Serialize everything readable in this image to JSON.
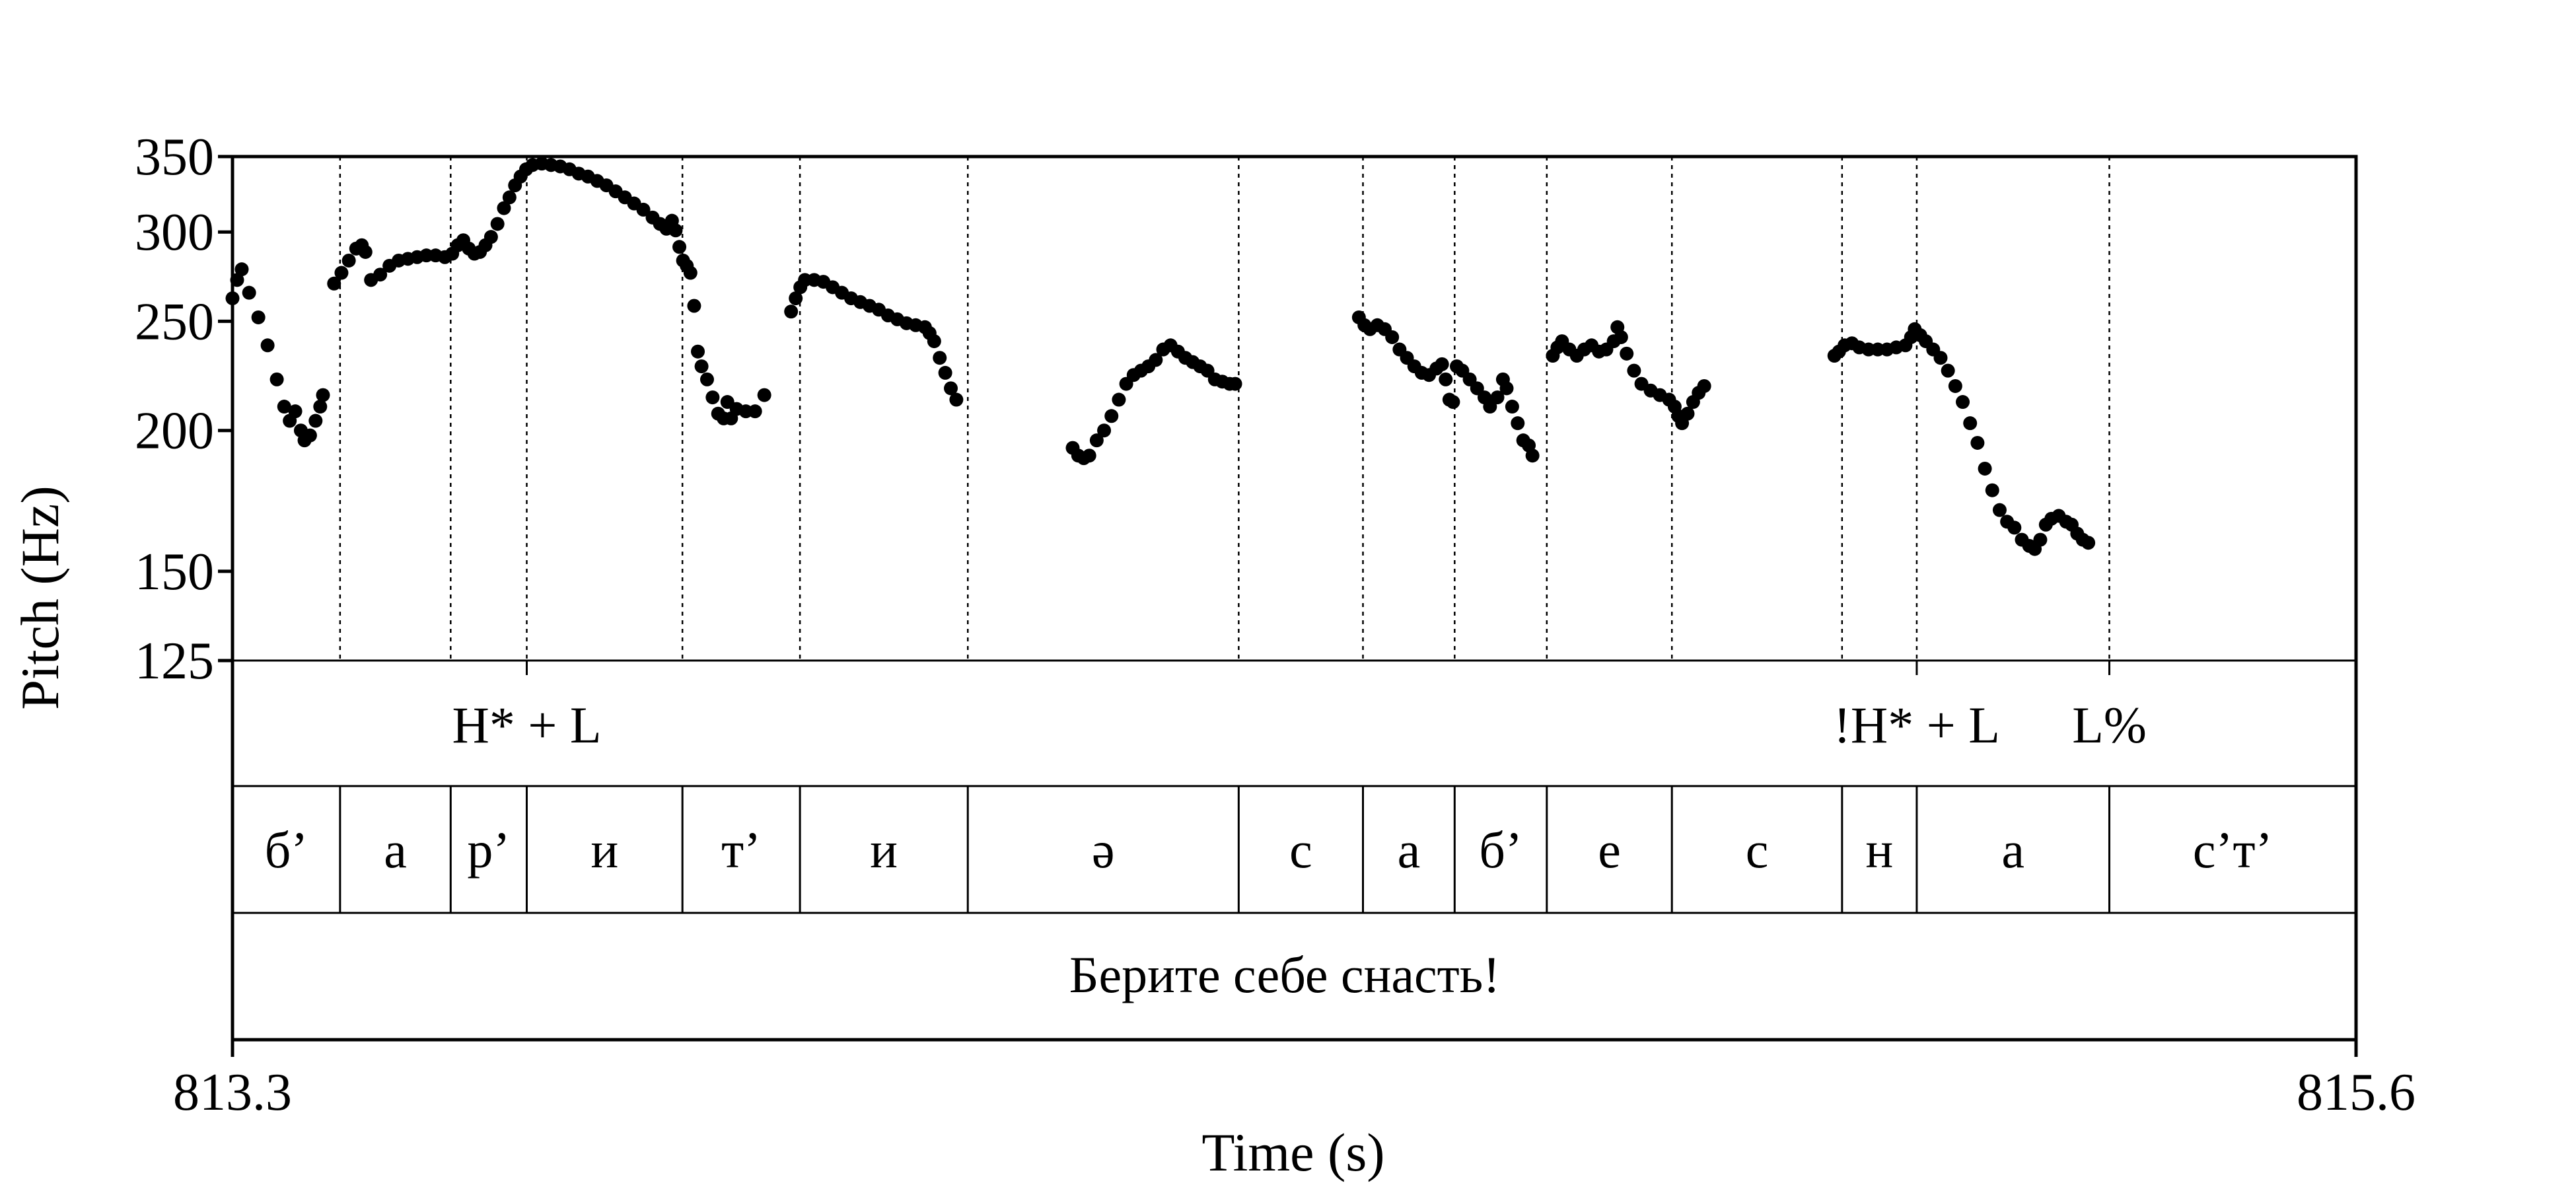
{
  "chart_data": {
    "type": "scatter",
    "xlabel": "Time (s)",
    "ylabel": "Pitch (Hz)",
    "xlim": [
      813.3,
      815.6
    ],
    "ylim": [
      125,
      350
    ],
    "x_tick_labels": [
      "813.3",
      "815.6"
    ],
    "y_ticks": [
      125,
      150,
      200,
      250,
      300,
      350
    ],
    "y_tick_labels": [
      "125",
      "150",
      "200",
      "250",
      "300",
      "350"
    ],
    "y_scale": "log",
    "boundaries": [
      813.4165,
      813.5363,
      813.6187,
      813.7873,
      813.9146,
      814.0964,
      814.3898,
      814.5244,
      814.6237,
      814.7235,
      814.859,
      815.0433,
      815.1242,
      815.3328
    ],
    "tones": [
      {
        "label": "H* + L",
        "time": 813.6187
      },
      {
        "label": "!H* + L",
        "time": 815.1242
      },
      {
        "label": "L%",
        "time": 815.3328
      }
    ],
    "segments": [
      {
        "label": "б’",
        "start": 813.3,
        "end": 813.4165
      },
      {
        "label": "а",
        "start": 813.4165,
        "end": 813.5363
      },
      {
        "label": "р’",
        "start": 813.5363,
        "end": 813.6187
      },
      {
        "label": "и",
        "start": 813.6187,
        "end": 813.7873
      },
      {
        "label": "т’",
        "start": 813.7873,
        "end": 813.9146
      },
      {
        "label": "и",
        "start": 813.9146,
        "end": 814.0964
      },
      {
        "label": "ә",
        "start": 814.0964,
        "end": 814.3898
      },
      {
        "label": "с",
        "start": 814.3898,
        "end": 814.5244
      },
      {
        "label": "а",
        "start": 814.5244,
        "end": 814.6237
      },
      {
        "label": "б’",
        "start": 814.6237,
        "end": 814.7235
      },
      {
        "label": "е",
        "start": 814.7235,
        "end": 814.859
      },
      {
        "label": "с",
        "start": 814.859,
        "end": 815.0433
      },
      {
        "label": "н",
        "start": 815.0433,
        "end": 815.1242
      },
      {
        "label": "а",
        "start": 815.1242,
        "end": 815.3328
      },
      {
        "label": "с’т’",
        "start": 815.3328,
        "end": 815.6
      }
    ],
    "sentence": "Берите себе снасть!",
    "series": [
      {
        "points": [
          [
            813.3,
            262
          ],
          [
            813.305,
            272
          ],
          [
            813.31,
            278
          ],
          [
            813.318,
            265
          ],
          [
            813.328,
            252
          ],
          [
            813.338,
            238
          ],
          [
            813.348,
            222
          ],
          [
            813.356,
            210
          ],
          [
            813.362,
            204
          ],
          [
            813.368,
            208
          ],
          [
            813.374,
            200
          ],
          [
            813.378,
            196
          ],
          [
            813.384,
            198
          ],
          [
            813.39,
            204
          ],
          [
            813.395,
            210
          ],
          [
            813.398,
            215
          ]
        ]
      },
      {
        "points": [
          [
            813.41,
            270
          ],
          [
            813.418,
            276
          ],
          [
            813.426,
            283
          ],
          [
            813.434,
            290
          ],
          [
            813.44,
            292
          ],
          [
            813.444,
            288
          ],
          [
            813.45,
            272
          ],
          [
            813.46,
            275
          ],
          [
            813.47,
            280
          ],
          [
            813.48,
            283
          ],
          [
            813.49,
            284
          ],
          [
            813.5,
            285
          ],
          [
            813.51,
            286
          ],
          [
            813.52,
            286
          ],
          [
            813.53,
            285
          ],
          [
            813.538,
            287
          ],
          [
            813.544,
            292
          ],
          [
            813.55,
            295
          ],
          [
            813.556,
            290
          ],
          [
            813.562,
            287
          ],
          [
            813.568,
            288
          ],
          [
            813.574,
            292
          ],
          [
            813.58,
            297
          ],
          [
            813.587,
            305
          ],
          [
            813.594,
            315
          ],
          [
            813.6,
            322
          ],
          [
            813.606,
            330
          ],
          [
            813.612,
            336
          ],
          [
            813.618,
            341
          ],
          [
            813.625,
            344
          ],
          [
            813.635,
            345
          ],
          [
            813.645,
            344
          ],
          [
            813.655,
            343
          ],
          [
            813.665,
            341
          ],
          [
            813.675,
            338
          ],
          [
            813.685,
            336
          ],
          [
            813.695,
            333
          ],
          [
            813.705,
            330
          ],
          [
            813.715,
            326
          ],
          [
            813.725,
            322
          ],
          [
            813.735,
            318
          ],
          [
            813.745,
            314
          ],
          [
            813.755,
            309
          ],
          [
            813.763,
            305
          ],
          [
            813.77,
            302
          ],
          [
            813.776,
            307
          ],
          [
            813.78,
            301
          ],
          [
            813.784,
            291
          ],
          [
            813.788,
            283
          ],
          [
            813.792,
            280
          ],
          [
            813.796,
            276
          ],
          [
            813.8,
            258
          ],
          [
            813.804,
            235
          ],
          [
            813.808,
            228
          ],
          [
            813.814,
            222
          ],
          [
            813.82,
            214
          ],
          [
            813.826,
            207
          ],
          [
            813.832,
            205
          ],
          [
            813.836,
            212
          ],
          [
            813.84,
            205
          ],
          [
            813.846,
            209
          ],
          [
            813.856,
            208
          ],
          [
            813.866,
            208
          ],
          [
            813.876,
            215
          ]
        ]
      },
      {
        "points": [
          [
            813.905,
            255
          ],
          [
            813.91,
            262
          ],
          [
            813.915,
            268
          ],
          [
            813.92,
            272
          ],
          [
            813.93,
            272
          ],
          [
            813.94,
            271
          ],
          [
            813.95,
            268
          ],
          [
            813.96,
            265
          ],
          [
            813.97,
            262
          ],
          [
            813.98,
            260
          ],
          [
            813.99,
            258
          ],
          [
            814.0,
            256
          ],
          [
            814.01,
            253
          ],
          [
            814.02,
            251
          ],
          [
            814.03,
            249
          ],
          [
            814.04,
            248
          ],
          [
            814.05,
            247
          ],
          [
            814.055,
            244
          ],
          [
            814.06,
            240
          ],
          [
            814.066,
            232
          ],
          [
            814.072,
            225
          ],
          [
            814.078,
            218
          ],
          [
            814.084,
            213
          ]
        ]
      },
      {
        "points": [
          [
            814.21,
            193
          ],
          [
            814.216,
            190
          ],
          [
            814.222,
            189
          ],
          [
            814.228,
            190
          ],
          [
            814.236,
            196
          ],
          [
            814.244,
            200
          ],
          [
            814.252,
            206
          ],
          [
            814.26,
            213
          ],
          [
            814.268,
            220
          ],
          [
            814.276,
            224
          ],
          [
            814.284,
            226
          ],
          [
            814.292,
            228
          ],
          [
            814.3,
            231
          ],
          [
            814.308,
            236
          ],
          [
            814.316,
            238
          ],
          [
            814.324,
            235
          ],
          [
            814.332,
            232
          ],
          [
            814.34,
            230
          ],
          [
            814.348,
            228
          ],
          [
            814.356,
            226
          ],
          [
            814.364,
            222
          ],
          [
            814.372,
            221
          ],
          [
            814.38,
            220
          ],
          [
            814.386,
            220
          ]
        ]
      },
      {
        "points": [
          [
            814.52,
            252
          ],
          [
            814.526,
            248
          ],
          [
            814.532,
            246
          ],
          [
            814.54,
            248
          ],
          [
            814.548,
            246
          ],
          [
            814.556,
            242
          ],
          [
            814.564,
            236
          ],
          [
            814.572,
            232
          ],
          [
            814.58,
            228
          ],
          [
            814.588,
            225
          ],
          [
            814.596,
            224
          ],
          [
            814.604,
            227
          ],
          [
            814.61,
            229
          ],
          [
            814.614,
            222
          ],
          [
            814.618,
            213
          ],
          [
            814.622,
            212
          ],
          [
            814.626,
            228
          ],
          [
            814.632,
            226
          ],
          [
            814.64,
            222
          ],
          [
            814.648,
            218
          ],
          [
            814.656,
            214
          ],
          [
            814.662,
            210
          ],
          [
            814.67,
            214
          ],
          [
            814.676,
            222
          ],
          [
            814.68,
            218
          ],
          [
            814.686,
            210
          ],
          [
            814.692,
            203
          ],
          [
            814.698,
            196
          ],
          [
            814.704,
            194
          ],
          [
            814.708,
            190
          ]
        ]
      },
      {
        "points": [
          [
            814.73,
            233
          ],
          [
            814.735,
            237
          ],
          [
            814.74,
            240
          ],
          [
            814.748,
            236
          ],
          [
            814.756,
            233
          ],
          [
            814.764,
            236
          ],
          [
            814.772,
            238
          ],
          [
            814.78,
            235
          ],
          [
            814.788,
            236
          ],
          [
            814.796,
            240
          ],
          [
            814.8,
            247
          ],
          [
            814.804,
            242
          ],
          [
            814.81,
            234
          ],
          [
            814.818,
            226
          ],
          [
            814.826,
            220
          ],
          [
            814.836,
            217
          ],
          [
            814.846,
            215
          ],
          [
            814.856,
            213
          ],
          [
            814.862,
            210
          ],
          [
            814.866,
            206
          ],
          [
            814.87,
            203
          ],
          [
            814.876,
            207
          ],
          [
            814.882,
            212
          ],
          [
            814.888,
            216
          ],
          [
            814.894,
            219
          ]
        ]
      },
      {
        "points": [
          [
            815.035,
            233
          ],
          [
            815.04,
            235
          ],
          [
            815.046,
            238
          ],
          [
            815.054,
            239
          ],
          [
            815.062,
            237
          ],
          [
            815.072,
            236
          ],
          [
            815.082,
            236
          ],
          [
            815.092,
            236
          ],
          [
            815.102,
            237
          ],
          [
            815.112,
            238
          ],
          [
            815.118,
            242
          ],
          [
            815.122,
            246
          ],
          [
            815.128,
            243
          ],
          [
            815.134,
            240
          ],
          [
            815.142,
            236
          ],
          [
            815.15,
            232
          ],
          [
            815.158,
            226
          ],
          [
            815.166,
            219
          ],
          [
            815.174,
            212
          ],
          [
            815.182,
            203
          ],
          [
            815.19,
            195
          ],
          [
            815.198,
            185
          ],
          [
            815.206,
            177
          ],
          [
            815.214,
            170
          ],
          [
            815.222,
            166
          ],
          [
            815.23,
            164
          ],
          [
            815.238,
            160
          ],
          [
            815.246,
            158
          ],
          [
            815.252,
            157
          ],
          [
            815.258,
            160
          ],
          [
            815.264,
            165
          ],
          [
            815.27,
            167
          ],
          [
            815.278,
            168
          ],
          [
            815.286,
            166
          ],
          [
            815.292,
            165
          ],
          [
            815.298,
            162
          ],
          [
            815.304,
            160
          ],
          [
            815.31,
            159
          ]
        ]
      }
    ]
  }
}
